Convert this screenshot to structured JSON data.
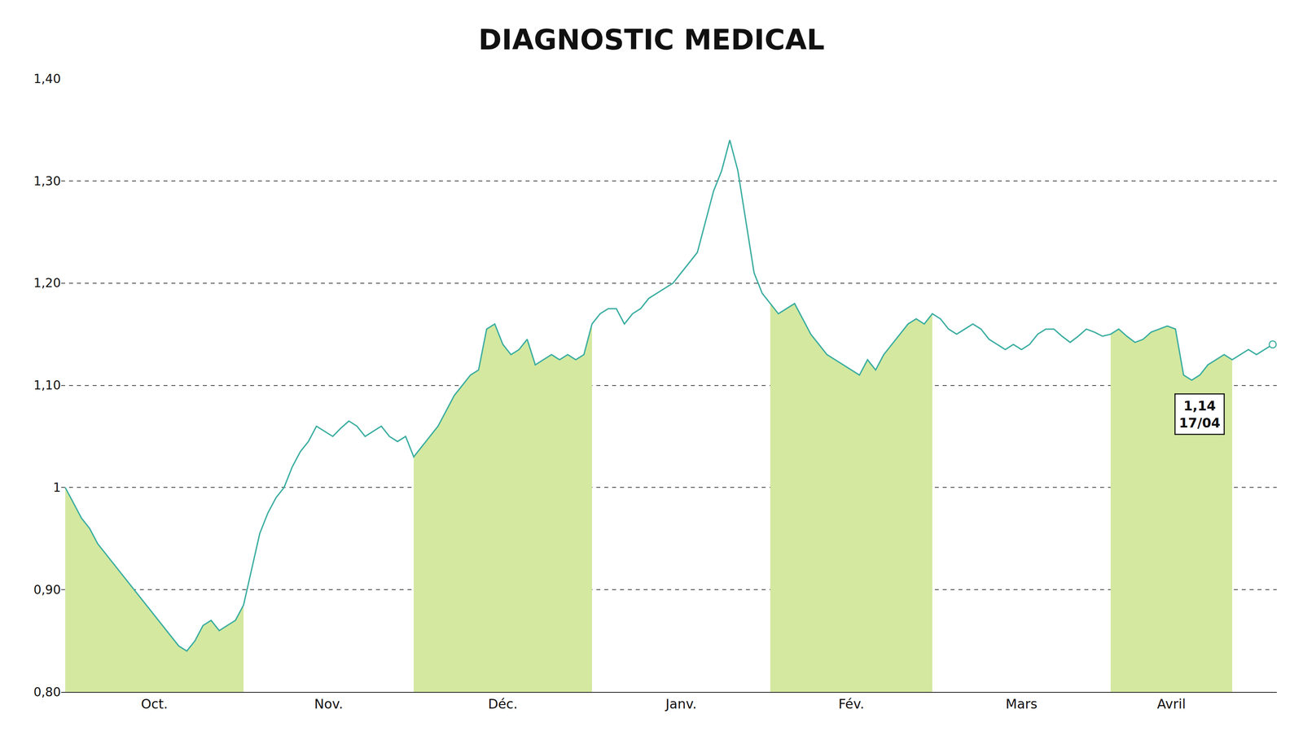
{
  "chart_data": {
    "type": "line",
    "title": "DIAGNOSTIC MEDICAL",
    "x": [
      0,
      1,
      2,
      3,
      4,
      5,
      6,
      7,
      8,
      9,
      10,
      11,
      12,
      13,
      14,
      15,
      16,
      17,
      18,
      19,
      20,
      21,
      22,
      23,
      24,
      25,
      26,
      27,
      28,
      29,
      30,
      31,
      32,
      33,
      34,
      35,
      36,
      37,
      38,
      39,
      40,
      41,
      42,
      43,
      44,
      45,
      46,
      47,
      48,
      49,
      50,
      51,
      52,
      53,
      54,
      55,
      56,
      57,
      58,
      59,
      60,
      61,
      62,
      63,
      64,
      65,
      66,
      67,
      68,
      69,
      70,
      71,
      72,
      73,
      74,
      75,
      76,
      77,
      78,
      79,
      80,
      81,
      82,
      83,
      84,
      85,
      86,
      87,
      88,
      89,
      90,
      91,
      92,
      93,
      94,
      95,
      96,
      97,
      98,
      99,
      100,
      101,
      102,
      103,
      104,
      105,
      106,
      107,
      108,
      109,
      110,
      111,
      112,
      113,
      114,
      115,
      116,
      117,
      118,
      119,
      120,
      121,
      122,
      123,
      124,
      125,
      126,
      127,
      128,
      129,
      130,
      131,
      132,
      133,
      134,
      135,
      136,
      137,
      138,
      139,
      140,
      141,
      142,
      143,
      144,
      145,
      146,
      147,
      148,
      149
    ],
    "series": [
      {
        "type": "area",
        "color": "#d4e8a0",
        "values": [
          1.0,
          0.985,
          0.97,
          0.96,
          0.945,
          0.935,
          0.925,
          0.915,
          0.905,
          0.895,
          0.885,
          0.875,
          0.865,
          0.855,
          0.845,
          0.84,
          0.85,
          0.865,
          0.87,
          0.86,
          0.865,
          0.87,
          0.885,
          null,
          null,
          null,
          null,
          null,
          null,
          null,
          null,
          null,
          null,
          null,
          null,
          null,
          null,
          null,
          null,
          null,
          null,
          null,
          null,
          1.03,
          1.04,
          1.05,
          1.06,
          1.075,
          1.09,
          1.1,
          1.11,
          1.115,
          1.155,
          1.16,
          1.14,
          1.13,
          1.135,
          1.145,
          1.12,
          1.125,
          1.13,
          1.125,
          1.13,
          1.125,
          1.13,
          1.16,
          null,
          null,
          null,
          null,
          null,
          null,
          null,
          null,
          null,
          null,
          null,
          null,
          null,
          null,
          null,
          null,
          null,
          null,
          null,
          null,
          null,
          1.18,
          1.17,
          1.175,
          1.18,
          1.165,
          1.15,
          1.14,
          1.13,
          1.125,
          1.12,
          1.115,
          1.11,
          1.125,
          1.115,
          1.13,
          1.14,
          1.15,
          1.16,
          1.165,
          1.16,
          1.17,
          null,
          null,
          null,
          null,
          null,
          null,
          null,
          null,
          null,
          null,
          null,
          null,
          null,
          null,
          null,
          null,
          null,
          null,
          null,
          null,
          null,
          1.15,
          1.155,
          1.148,
          1.142,
          1.145,
          1.152,
          1.155,
          1.158,
          1.155,
          1.11,
          1.105,
          1.11,
          1.12,
          1.125,
          1.13,
          1.125,
          null,
          null,
          null,
          null,
          null
        ]
      },
      {
        "type": "line",
        "color": "#3aada0",
        "values": [
          1.0,
          0.985,
          0.97,
          0.96,
          0.945,
          0.935,
          0.925,
          0.915,
          0.905,
          0.895,
          0.885,
          0.875,
          0.865,
          0.855,
          0.845,
          0.84,
          0.85,
          0.865,
          0.87,
          0.86,
          0.865,
          0.87,
          0.885,
          0.92,
          0.955,
          0.975,
          0.99,
          1.0,
          1.02,
          1.035,
          1.045,
          1.06,
          1.055,
          1.05,
          1.058,
          1.065,
          1.06,
          1.05,
          1.055,
          1.06,
          1.05,
          1.045,
          1.05,
          1.03,
          1.04,
          1.05,
          1.06,
          1.075,
          1.09,
          1.1,
          1.11,
          1.115,
          1.155,
          1.16,
          1.14,
          1.13,
          1.135,
          1.145,
          1.12,
          1.125,
          1.13,
          1.125,
          1.13,
          1.125,
          1.13,
          1.16,
          1.17,
          1.175,
          1.175,
          1.16,
          1.17,
          1.175,
          1.185,
          1.19,
          1.195,
          1.2,
          1.21,
          1.22,
          1.23,
          1.26,
          1.29,
          1.31,
          1.34,
          1.31,
          1.26,
          1.21,
          1.19,
          1.18,
          1.17,
          1.175,
          1.18,
          1.165,
          1.15,
          1.14,
          1.13,
          1.125,
          1.12,
          1.115,
          1.11,
          1.125,
          1.115,
          1.13,
          1.14,
          1.15,
          1.16,
          1.165,
          1.16,
          1.17,
          1.165,
          1.155,
          1.15,
          1.155,
          1.16,
          1.155,
          1.145,
          1.14,
          1.135,
          1.14,
          1.135,
          1.14,
          1.15,
          1.155,
          1.155,
          1.148,
          1.142,
          1.148,
          1.155,
          1.152,
          1.148,
          1.15,
          1.155,
          1.148,
          1.142,
          1.145,
          1.152,
          1.155,
          1.158,
          1.155,
          1.11,
          1.105,
          1.11,
          1.12,
          1.125,
          1.13,
          1.125,
          1.13,
          1.135,
          1.13,
          1.135,
          1.14
        ]
      }
    ],
    "xlim": [
      -0.5,
      149.5
    ],
    "xticks": [
      {
        "value": 11,
        "label": "Oct."
      },
      {
        "value": 32.5,
        "label": "Nov."
      },
      {
        "value": 54,
        "label": "Déc."
      },
      {
        "value": 76,
        "label": "Janv."
      },
      {
        "value": 97,
        "label": "Fév."
      },
      {
        "value": 118,
        "label": "Mars"
      },
      {
        "value": 136.5,
        "label": "Avril"
      }
    ],
    "ylim": [
      0.8,
      1.4
    ],
    "yticks": [
      {
        "value": 0.8,
        "label": "0,80"
      },
      {
        "value": 0.9,
        "label": "0,90"
      },
      1,
      {
        "value": 1.1,
        "label": "1,10"
      },
      {
        "value": 1.2,
        "label": "1,20"
      },
      {
        "value": 1.3,
        "label": "1,30"
      },
      {
        "value": 1.4,
        "label": "1,40"
      }
    ],
    "grid": true,
    "annotations": [
      {
        "x": 149,
        "y": 1.14,
        "text": "1,14\n17/04"
      }
    ]
  }
}
